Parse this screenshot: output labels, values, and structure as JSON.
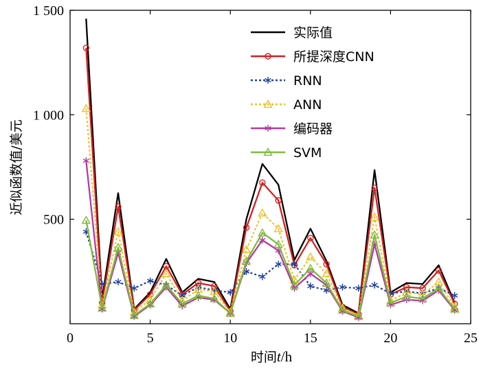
{
  "chart_data": {
    "type": "line",
    "title": "",
    "xlabel_prefix": "时间",
    "xlabel_var": "t",
    "xlabel_unit": "/h",
    "ylabel": "近似函数值/美元",
    "xlim": [
      0,
      25
    ],
    "ylim": [
      0,
      1500
    ],
    "xticks": [
      0,
      5,
      10,
      15,
      20,
      25
    ],
    "xtick_labels": [
      "0",
      "5",
      "10",
      "15",
      "20",
      "25"
    ],
    "yticks": [
      500,
      1000,
      1500
    ],
    "ytick_labels": [
      "500",
      "1 000",
      "1 500"
    ],
    "grid": false,
    "legend_position": "top-right",
    "x": [
      1,
      2,
      3,
      4,
      5,
      6,
      7,
      8,
      9,
      10,
      11,
      12,
      13,
      14,
      15,
      16,
      17,
      18,
      19,
      20,
      21,
      22,
      23,
      24
    ],
    "series": [
      {
        "name": "实际值",
        "color": "#000000",
        "dash": "solid",
        "marker": "none",
        "values": [
          1460,
          120,
          625,
          70,
          150,
          310,
          150,
          215,
          200,
          70,
          500,
          765,
          665,
          305,
          455,
          300,
          90,
          50,
          735,
          150,
          195,
          190,
          280,
          100
        ]
      },
      {
        "name": "所提深度CNN",
        "color": "#d42020",
        "dash": "solid",
        "marker": "circle",
        "values": [
          1320,
          100,
          560,
          65,
          140,
          275,
          140,
          195,
          180,
          60,
          460,
          675,
          590,
          280,
          410,
          285,
          80,
          45,
          650,
          140,
          175,
          170,
          255,
          95
        ]
      },
      {
        "name": "RNN",
        "color": "#1f3f9e",
        "dash": "dotted",
        "marker": "asterisk",
        "values": [
          440,
          190,
          200,
          170,
          205,
          185,
          135,
          175,
          160,
          150,
          250,
          225,
          285,
          285,
          180,
          160,
          175,
          170,
          185,
          145,
          155,
          145,
          170,
          135
        ]
      },
      {
        "name": "ANN",
        "color": "#f0c020",
        "dash": "dotted",
        "marker": "triangle",
        "values": [
          1030,
          90,
          440,
          55,
          115,
          240,
          110,
          165,
          155,
          55,
          355,
          530,
          455,
          210,
          320,
          240,
          75,
          40,
          510,
          110,
          150,
          140,
          200,
          80
        ]
      },
      {
        "name": "编码器",
        "color": "#b33aa3",
        "dash": "solid",
        "marker": "asterisk",
        "values": [
          780,
          70,
          340,
          35,
          90,
          175,
          85,
          125,
          115,
          50,
          290,
          400,
          350,
          170,
          240,
          185,
          60,
          30,
          380,
          90,
          115,
          110,
          160,
          65
        ]
      },
      {
        "name": "SVM",
        "color": "#7dbb3a",
        "dash": "solid",
        "marker": "triangle",
        "values": [
          495,
          75,
          365,
          40,
          95,
          185,
          95,
          135,
          120,
          50,
          300,
          435,
          380,
          185,
          265,
          195,
          65,
          35,
          425,
          100,
          130,
          120,
          170,
          70
        ]
      }
    ]
  }
}
